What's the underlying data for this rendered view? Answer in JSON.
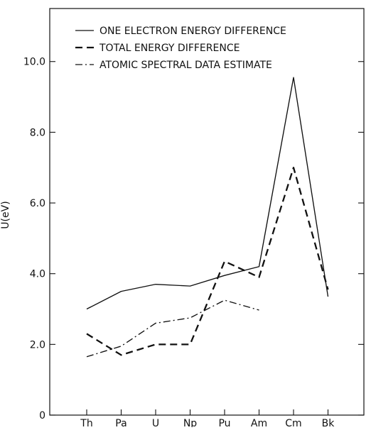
{
  "chart_data": {
    "type": "line",
    "title": "",
    "xlabel": "",
    "ylabel": "U(eV)",
    "categories": [
      "Th",
      "Pa",
      "U",
      "Np",
      "Pu",
      "Am",
      "Cm",
      "Bk"
    ],
    "y_ticks": [
      "0",
      "2.0",
      "4.0",
      "6.0",
      "8.0",
      "10.0"
    ],
    "ylim": [
      0,
      11.5
    ],
    "grid": false,
    "legend_position": "top-left",
    "series": [
      {
        "name": "ONE ELECTRON ENERGY DIFFERENCE",
        "style": "solid",
        "values": [
          3.0,
          3.5,
          3.7,
          3.65,
          3.95,
          4.2,
          9.55,
          3.35
        ]
      },
      {
        "name": "TOTAL ENERGY DIFFERENCE",
        "style": "dashed",
        "values": [
          2.3,
          1.7,
          2.0,
          2.0,
          4.35,
          3.9,
          7.0,
          3.55
        ]
      },
      {
        "name": "ATOMIC SPECTRAL DATA ESTIMATE",
        "style": "dashdot",
        "values": [
          1.65,
          1.95,
          2.6,
          2.75,
          3.25,
          2.97,
          null,
          null
        ]
      }
    ]
  }
}
